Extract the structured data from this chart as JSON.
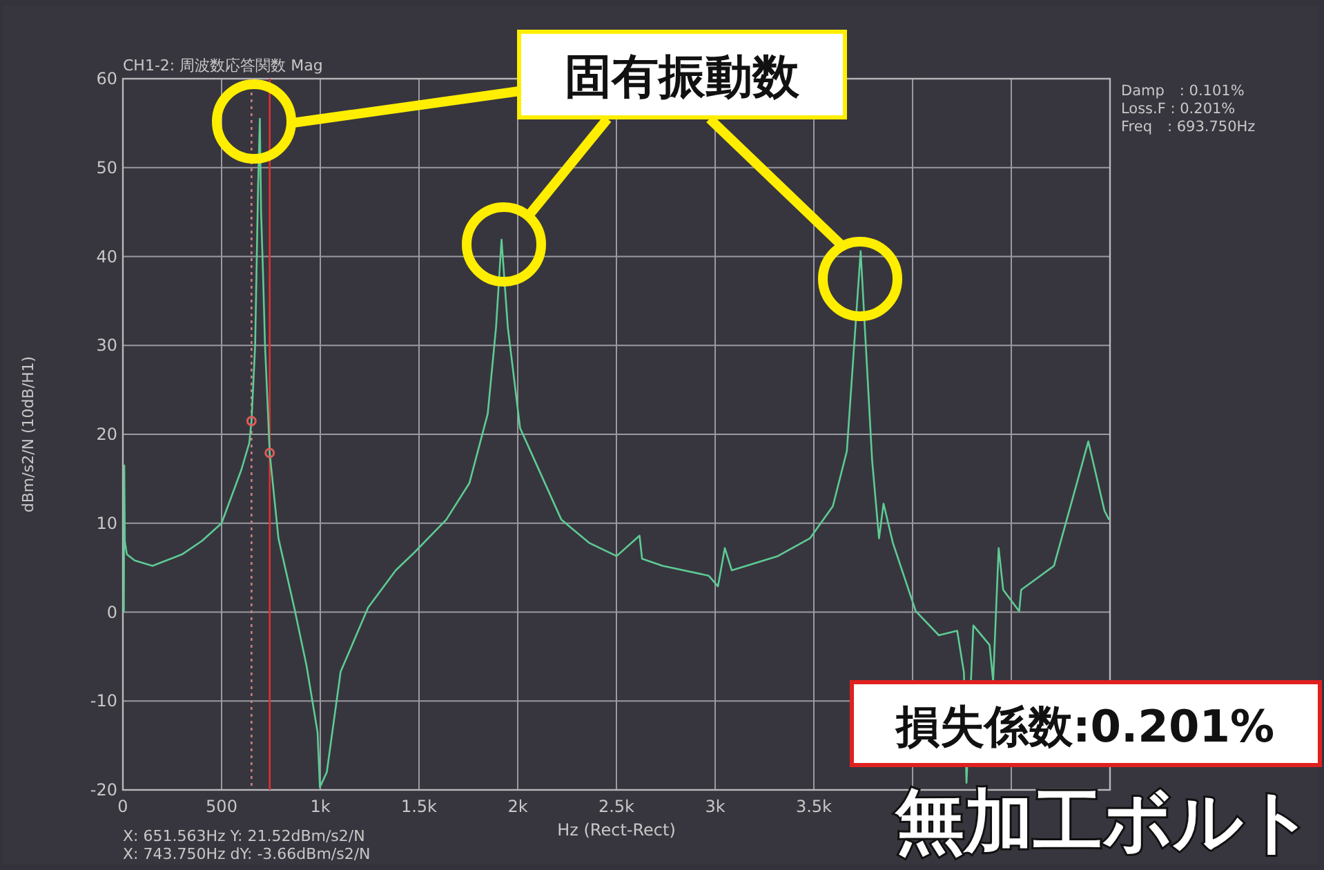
{
  "chart_data": {
    "type": "line",
    "title": "CH1-2: 周波数応答関数 Mag",
    "xlabel": "Hz (Rect-Rect)",
    "ylabel": "dBm/s2/N (10dB/H1)",
    "xlim": [
      0,
      5000
    ],
    "ylim": [
      -20,
      60
    ],
    "xticks": [
      0,
      500,
      {
        "value": 1000,
        "label": "1k"
      },
      {
        "value": 1500,
        "label": "1.5k"
      },
      {
        "value": 2000,
        "label": "2k"
      },
      {
        "value": 2500,
        "label": "2.5k"
      },
      {
        "value": 3000,
        "label": "3k"
      },
      {
        "value": 3500,
        "label": "3.5k"
      },
      {
        "value": 4000,
        "label": null
      },
      {
        "value": 4500,
        "label": null
      },
      {
        "value": 5000,
        "label": null
      }
    ],
    "yticks": [
      -20,
      -10,
      0,
      10,
      20,
      30,
      40,
      50,
      60
    ],
    "grid": true,
    "series": [
      {
        "color": "#5ecb94",
        "marker": "none",
        "x": [
          5,
          7,
          10,
          20,
          60,
          150,
          300,
          400,
          500,
          600,
          640,
          651.563,
          670,
          685,
          693.75,
          700,
          710,
          720,
          743.75,
          788,
          868,
          930,
          986,
          998,
          1033,
          1103,
          1242,
          1382,
          1476,
          1638,
          1755,
          1848,
          1890,
          1918,
          1950,
          2012,
          2221,
          2361,
          2501,
          2617,
          2630,
          2734,
          2967,
          3014,
          3049,
          3084,
          3317,
          3480,
          3596,
          3667,
          3737,
          3795,
          3830,
          3853,
          3900,
          4016,
          4133,
          4226,
          4260,
          4273,
          4308,
          4390,
          4408,
          4436,
          4459,
          4540,
          4550,
          4716,
          4832,
          4890,
          4972,
          4995
        ],
        "values": [
          0,
          16.5,
          8,
          6.5,
          5.8,
          5.2,
          6.5,
          8,
          10,
          16,
          19,
          21.5,
          30,
          48,
          55.5,
          45,
          38,
          30,
          17.9,
          8.3,
          0.5,
          -6,
          -13.5,
          -19.7,
          -18,
          -6.7,
          0.5,
          4.7,
          6.7,
          10.4,
          14.5,
          22.3,
          32,
          41.9,
          32,
          20.7,
          10.4,
          7.8,
          6.3,
          8.6,
          6,
          5.2,
          4.1,
          2.9,
          7.2,
          4.7,
          6.3,
          8.3,
          11.9,
          18.1,
          40.6,
          17.1,
          8.3,
          12.2,
          7.8,
          0.1,
          -2.6,
          -2.1,
          -6.8,
          -19.2,
          -1.5,
          -3.7,
          -7.8,
          7.2,
          2.5,
          0.1,
          2.5,
          5.2,
          14.5,
          19.2,
          11.4,
          10.4
        ]
      },
      {
        "type": "scatter",
        "color": "#e05a5a",
        "marker": "circle",
        "x": [
          651.563,
          743.75
        ],
        "values": [
          21.5,
          17.9
        ]
      }
    ],
    "ref_lines": [
      {
        "axis": "x",
        "value": 651.563,
        "color": "#d08080",
        "line_style": "dotted"
      },
      {
        "axis": "x",
        "value": 743.75,
        "color": "#e03030",
        "line_style": "solid"
      }
    ],
    "annotations": [
      "Damp　: 0.101%",
      "Loss.F : 0.201%",
      "Freq　: 693.750Hz",
      "X: 651.563Hz Y: 21.52dBm/s2/N",
      "X: 743.750Hz dY: -3.66dBm/s2/N",
      "固有振動数",
      "損失係数:0.201%",
      "無加工ボルト"
    ]
  }
}
